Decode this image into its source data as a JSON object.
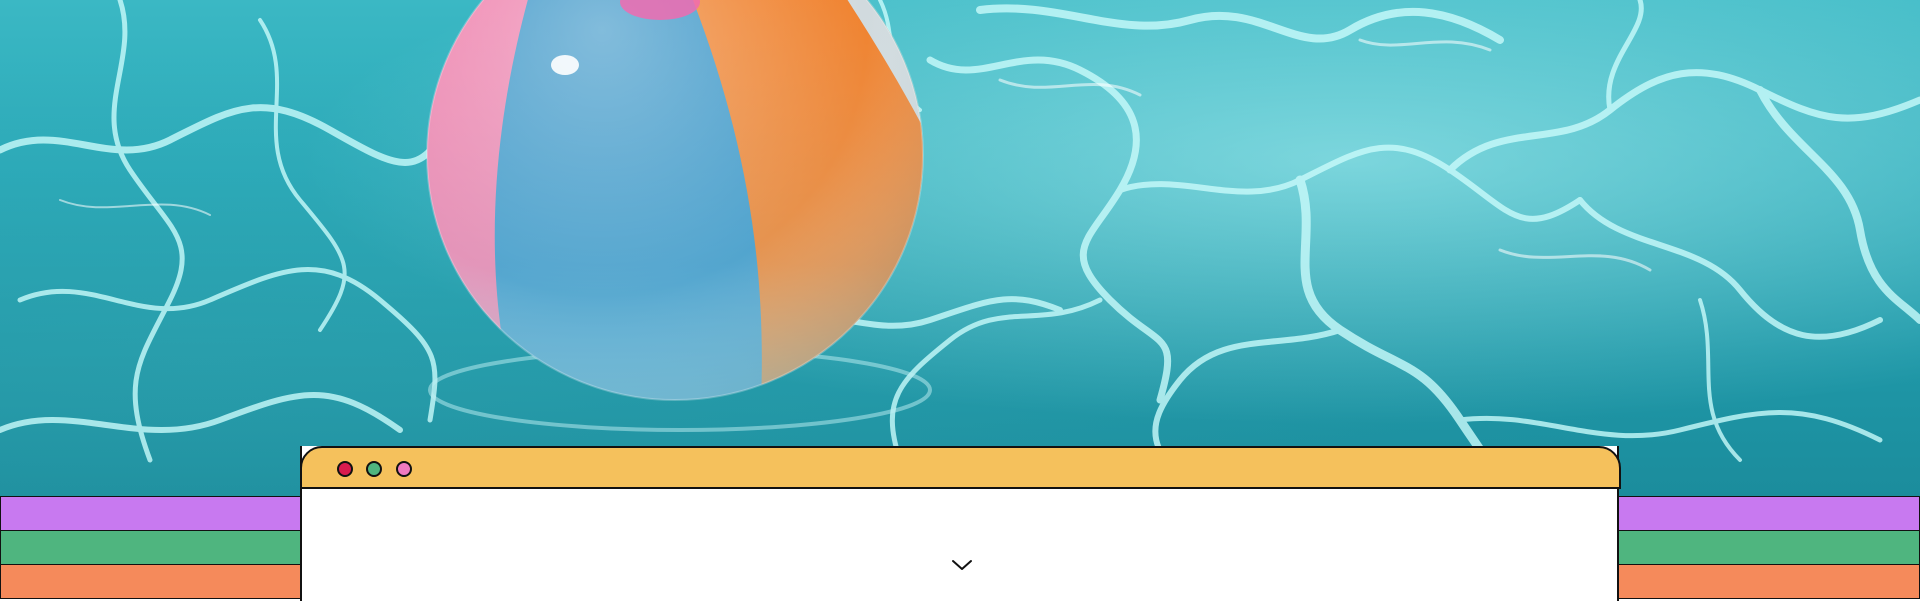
{
  "hero": {
    "image": "pool-water-with-beach-ball",
    "ball_colors": [
      "#ef7aa8",
      "#2f8fc4",
      "#f0791f",
      "#cfd8dc"
    ]
  },
  "stripes": [
    {
      "name": "purple",
      "color": "#c879f0"
    },
    {
      "name": "green",
      "color": "#4fb57f"
    },
    {
      "name": "orange",
      "color": "#f58a5b"
    }
  ],
  "window": {
    "titlebar_color": "#f5c15c",
    "body_color": "#ffffff",
    "controls": [
      {
        "name": "close",
        "color": "#d81b4e"
      },
      {
        "name": "minimize",
        "color": "#4fb57f"
      },
      {
        "name": "maximize",
        "color": "#f07ac0"
      }
    ],
    "scroll_icon": "chevron-down-icon"
  }
}
